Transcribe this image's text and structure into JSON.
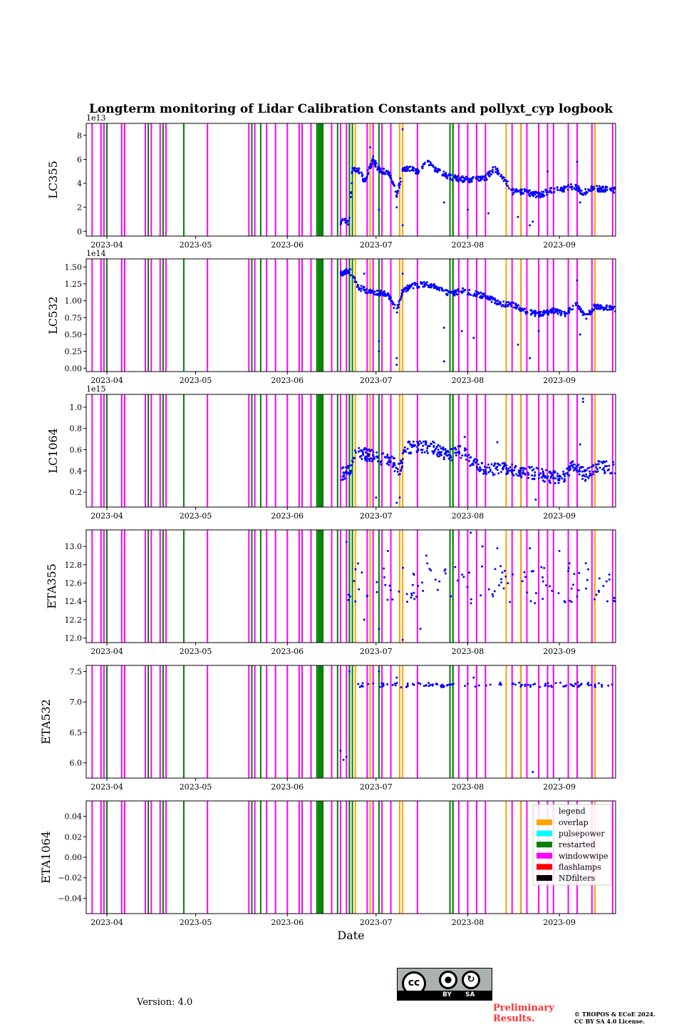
{
  "page": {
    "version_text": "Version: 4.0",
    "preliminary_text": "Preliminary Results.",
    "copyright_line1": "© TROPOS & ECoE 2024.",
    "copyright_line2": "CC BY SA 4.0 License.",
    "cc_badge": {
      "cc_label": "cc",
      "by_label": "BY",
      "sa_label": "SA"
    }
  },
  "chart_data": {
    "type": "scatter",
    "title": "Longterm monitoring of Lidar Calibration Constants and pollyxt_cyp logbook",
    "xlabel": "Date",
    "xlim": [
      "2023-03-25",
      "2023-09-20"
    ],
    "x_ticks": [
      "2023-04-01",
      "2023-05-01",
      "2023-06-01",
      "2023-07-01",
      "2023-08-01",
      "2023-09-01"
    ],
    "x_tick_labels": [
      "2023-04",
      "2023-05",
      "2023-06",
      "2023-07",
      "2023-08",
      "2023-09"
    ],
    "point_color": "#0000ff",
    "legend": {
      "title": "legend",
      "placement": "upper-right of bottom panel",
      "entries": [
        {
          "label": "overlap",
          "color": "#ffa500"
        },
        {
          "label": "pulsepower",
          "color": "#00ffff"
        },
        {
          "label": "restarted",
          "color": "#008000"
        },
        {
          "label": "windowwipe",
          "color": "#ff00ff"
        },
        {
          "label": "flashlamps",
          "color": "#ff0000"
        },
        {
          "label": "NDfilters",
          "color": "#000000"
        }
      ]
    },
    "logbook_events": {
      "windowwipe": [
        "2023-03-27",
        "2023-03-30",
        "2023-03-31",
        "2023-04-06",
        "2023-04-07",
        "2023-04-14",
        "2023-04-16",
        "2023-04-19",
        "2023-04-21",
        "2023-05-05",
        "2023-05-19",
        "2023-05-21",
        "2023-05-25",
        "2023-05-28",
        "2023-06-01",
        "2023-06-05",
        "2023-06-06",
        "2023-06-09",
        "2023-06-13",
        "2023-06-16",
        "2023-06-19",
        "2023-06-21",
        "2023-06-22",
        "2023-06-28",
        "2023-06-30",
        "2023-07-03",
        "2023-07-06",
        "2023-07-09",
        "2023-07-15",
        "2023-07-27",
        "2023-07-29",
        "2023-08-01",
        "2023-08-04",
        "2023-08-07",
        "2023-08-16",
        "2023-08-19",
        "2023-08-21",
        "2023-08-25",
        "2023-08-28",
        "2023-08-30",
        "2023-09-04",
        "2023-09-07",
        "2023-09-12",
        "2023-09-19"
      ],
      "restarted": [
        "2023-04-01",
        "2023-04-15",
        "2023-04-20",
        "2023-04-27",
        "2023-05-20",
        "2023-05-23",
        "2023-06-11",
        "2023-06-11.5",
        "2023-06-12",
        "2023-06-12.5",
        "2023-06-13",
        "2023-06-18",
        "2023-06-22",
        "2023-06-23",
        "2023-07-02",
        "2023-07-26",
        "2023-07-27"
      ],
      "overlap": [
        "2023-06-24",
        "2023-06-29",
        "2023-07-09",
        "2023-07-10",
        "2023-08-14",
        "2023-08-19",
        "2023-09-13"
      ]
    },
    "panels": [
      {
        "ylabel": "LC355",
        "offset_label": "1e13",
        "ylim": [
          -0.4,
          9.0
        ],
        "y_ticks": [
          0,
          2,
          4,
          6,
          8
        ],
        "y_tick_labels": [
          "0",
          "2",
          "4",
          "6",
          "8"
        ],
        "trend": [
          [
            "2023-06-19",
            0.8
          ],
          [
            "2023-06-22",
            0.8
          ],
          [
            "2023-06-23",
            5.2
          ],
          [
            "2023-06-25",
            5.2
          ],
          [
            "2023-06-27",
            4.2
          ],
          [
            "2023-06-30",
            6.0
          ],
          [
            "2023-07-02",
            5.1
          ],
          [
            "2023-07-04",
            5.0
          ],
          [
            "2023-07-06",
            4.6
          ],
          [
            "2023-07-08",
            3.0
          ],
          [
            "2023-07-10",
            5.0
          ],
          [
            "2023-07-12",
            5.2
          ],
          [
            "2023-07-15",
            5.0
          ],
          [
            "2023-07-18",
            5.8
          ],
          [
            "2023-07-22",
            5.0
          ],
          [
            "2023-07-25",
            4.6
          ],
          [
            "2023-07-28",
            4.4
          ],
          [
            "2023-08-03",
            4.3
          ],
          [
            "2023-08-07",
            4.4
          ],
          [
            "2023-08-10",
            5.3
          ],
          [
            "2023-08-13",
            4.5
          ],
          [
            "2023-08-16",
            3.3
          ],
          [
            "2023-08-20",
            3.3
          ],
          [
            "2023-08-25",
            3.0
          ],
          [
            "2023-08-29",
            3.4
          ],
          [
            "2023-09-02",
            3.5
          ],
          [
            "2023-09-06",
            3.8
          ],
          [
            "2023-09-09",
            3.2
          ],
          [
            "2023-09-12",
            3.6
          ],
          [
            "2023-09-20",
            3.4
          ]
        ],
        "outliers": [
          [
            "2023-06-29",
            7.0
          ],
          [
            "2023-07-02",
            1.8
          ],
          [
            "2023-07-08",
            2.0
          ],
          [
            "2023-07-10",
            0.5
          ],
          [
            "2023-07-10",
            8.5
          ],
          [
            "2023-07-24",
            2.4
          ],
          [
            "2023-08-01",
            1.8
          ],
          [
            "2023-08-08",
            1.5
          ],
          [
            "2023-08-18",
            1.2
          ],
          [
            "2023-08-22",
            0.5
          ],
          [
            "2023-08-23",
            0.8
          ],
          [
            "2023-08-28",
            5.0
          ],
          [
            "2023-09-07",
            5.8
          ],
          [
            "2023-09-08",
            2.4
          ]
        ],
        "spread": 0.25,
        "seed": 3
      },
      {
        "ylabel": "LC532",
        "offset_label": "1e14",
        "ylim": [
          -0.05,
          1.62
        ],
        "y_ticks": [
          0.0,
          0.25,
          0.5,
          0.75,
          1.0,
          1.25,
          1.5
        ],
        "y_tick_labels": [
          "0.00",
          "0.25",
          "0.50",
          "0.75",
          "1.00",
          "1.25",
          "1.50"
        ],
        "trend": [
          [
            "2023-06-19",
            1.4
          ],
          [
            "2023-06-22",
            1.45
          ],
          [
            "2023-06-25",
            1.2
          ],
          [
            "2023-06-28",
            1.15
          ],
          [
            "2023-07-01",
            1.12
          ],
          [
            "2023-07-05",
            1.1
          ],
          [
            "2023-07-08",
            0.85
          ],
          [
            "2023-07-10",
            1.15
          ],
          [
            "2023-07-13",
            1.22
          ],
          [
            "2023-07-18",
            1.25
          ],
          [
            "2023-07-22",
            1.2
          ],
          [
            "2023-07-26",
            1.1
          ],
          [
            "2023-07-30",
            1.15
          ],
          [
            "2023-08-04",
            1.1
          ],
          [
            "2023-08-08",
            1.05
          ],
          [
            "2023-08-12",
            0.95
          ],
          [
            "2023-08-16",
            0.95
          ],
          [
            "2023-08-20",
            0.85
          ],
          [
            "2023-08-25",
            0.8
          ],
          [
            "2023-08-30",
            0.85
          ],
          [
            "2023-09-03",
            0.8
          ],
          [
            "2023-09-07",
            0.95
          ],
          [
            "2023-09-10",
            0.75
          ],
          [
            "2023-09-13",
            0.92
          ],
          [
            "2023-09-20",
            0.88
          ]
        ],
        "outliers": [
          [
            "2023-06-27",
            1.4
          ],
          [
            "2023-07-02",
            0.25
          ],
          [
            "2023-07-02",
            0.4
          ],
          [
            "2023-07-08",
            0.05
          ],
          [
            "2023-07-08",
            0.15
          ],
          [
            "2023-07-10",
            1.4
          ],
          [
            "2023-07-24",
            0.1
          ],
          [
            "2023-07-24",
            0.6
          ],
          [
            "2023-07-30",
            0.55
          ],
          [
            "2023-08-03",
            0.45
          ],
          [
            "2023-08-18",
            0.35
          ],
          [
            "2023-08-22",
            0.15
          ],
          [
            "2023-08-25",
            0.55
          ],
          [
            "2023-09-07",
            1.3
          ],
          [
            "2023-09-08",
            0.5
          ]
        ],
        "spread": 0.04,
        "seed": 7
      },
      {
        "ylabel": "LC1064",
        "offset_label": "1e15",
        "ylim": [
          0.06,
          1.12
        ],
        "y_ticks": [
          0.2,
          0.4,
          0.6,
          0.8,
          1.0
        ],
        "y_tick_labels": [
          "0.2",
          "0.4",
          "0.6",
          "0.8",
          "1.0"
        ],
        "trend": [
          [
            "2023-06-19",
            0.37
          ],
          [
            "2023-06-22",
            0.4
          ],
          [
            "2023-06-24",
            0.6
          ],
          [
            "2023-06-28",
            0.55
          ],
          [
            "2023-07-02",
            0.52
          ],
          [
            "2023-07-06",
            0.5
          ],
          [
            "2023-07-09",
            0.4
          ],
          [
            "2023-07-11",
            0.62
          ],
          [
            "2023-07-15",
            0.62
          ],
          [
            "2023-07-20",
            0.62
          ],
          [
            "2023-07-25",
            0.55
          ],
          [
            "2023-07-30",
            0.58
          ],
          [
            "2023-08-04",
            0.45
          ],
          [
            "2023-08-08",
            0.42
          ],
          [
            "2023-08-13",
            0.42
          ],
          [
            "2023-08-18",
            0.4
          ],
          [
            "2023-08-23",
            0.38
          ],
          [
            "2023-08-28",
            0.35
          ],
          [
            "2023-09-02",
            0.33
          ],
          [
            "2023-09-06",
            0.45
          ],
          [
            "2023-09-10",
            0.35
          ],
          [
            "2023-09-14",
            0.45
          ],
          [
            "2023-09-20",
            0.42
          ]
        ],
        "outliers": [
          [
            "2023-07-01",
            0.15
          ],
          [
            "2023-07-08",
            0.1
          ],
          [
            "2023-07-09",
            0.15
          ],
          [
            "2023-07-31",
            0.72
          ],
          [
            "2023-08-11",
            0.67
          ],
          [
            "2023-08-24",
            0.13
          ],
          [
            "2023-09-08",
            0.65
          ],
          [
            "2023-09-09",
            1.05
          ],
          [
            "2023-09-09",
            1.08
          ]
        ],
        "spread": 0.06,
        "seed": 11
      },
      {
        "ylabel": "ETA355",
        "offset_label": "",
        "ylim": [
          11.95,
          13.18
        ],
        "y_ticks": [
          12.0,
          12.2,
          12.4,
          12.6,
          12.8,
          13.0
        ],
        "y_tick_labels": [
          "12.0",
          "12.2",
          "12.4",
          "12.6",
          "12.8",
          "13.0"
        ],
        "trend": [
          [
            "2023-06-21",
            12.6
          ],
          [
            "2023-09-20",
            12.6
          ]
        ],
        "outliers": [
          [
            "2023-06-21",
            13.05
          ],
          [
            "2023-06-24",
            12.4
          ],
          [
            "2023-06-27",
            12.2
          ],
          [
            "2023-07-02",
            12.1
          ],
          [
            "2023-07-05",
            12.95
          ],
          [
            "2023-07-10",
            11.98
          ],
          [
            "2023-07-16",
            12.1
          ],
          [
            "2023-07-18",
            12.9
          ],
          [
            "2023-08-02",
            13.15
          ],
          [
            "2023-08-06",
            13.0
          ],
          [
            "2023-08-11",
            12.98
          ],
          [
            "2023-08-22",
            12.98
          ],
          [
            "2023-09-01",
            12.95
          ],
          [
            "2023-09-06",
            12.7
          ]
        ],
        "spread": 0.22,
        "seed": 19
      },
      {
        "ylabel": "ETA532",
        "offset_label": "",
        "ylim": [
          5.75,
          7.6
        ],
        "y_ticks": [
          6.0,
          6.5,
          7.0,
          7.5
        ],
        "y_tick_labels": [
          "6.0",
          "6.5",
          "7.0",
          "7.5"
        ],
        "trend": [
          [
            "2023-06-24",
            7.28
          ],
          [
            "2023-09-20",
            7.28
          ]
        ],
        "outliers": [
          [
            "2023-06-19",
            6.2
          ],
          [
            "2023-06-20",
            6.05
          ],
          [
            "2023-06-21",
            6.1
          ],
          [
            "2023-06-22",
            7.5
          ],
          [
            "2023-07-02",
            7.5
          ],
          [
            "2023-08-23",
            5.85
          ],
          [
            "2023-07-08",
            7.4
          ],
          [
            "2023-08-03",
            7.4
          ]
        ],
        "spread": 0.04,
        "seed": 23
      },
      {
        "ylabel": "ETA1064",
        "offset_label": "",
        "ylim": [
          -0.055,
          0.055
        ],
        "y_ticks": [
          -0.04,
          -0.02,
          0.0,
          0.02,
          0.04
        ],
        "y_tick_labels": [
          "−0.04",
          "−0.02",
          "0.00",
          "0.02",
          "0.04"
        ],
        "trend": [],
        "outliers": [],
        "spread": 0,
        "seed": 29
      }
    ]
  }
}
